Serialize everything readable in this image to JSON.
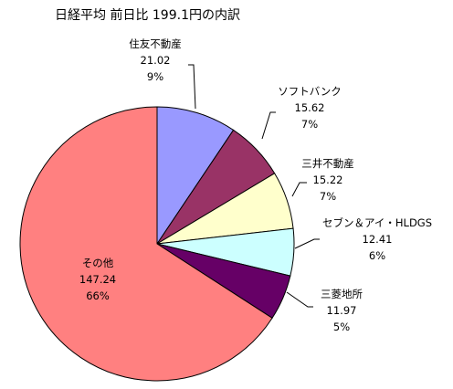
{
  "chart_data": {
    "type": "pie",
    "title": "日経平均 前日比 199.1円の内訳",
    "slices": [
      {
        "name": "住友不動産",
        "value": "21.02",
        "percent": "9%",
        "color": "#9999ff"
      },
      {
        "name": "ソフトバンク",
        "value": "15.62",
        "percent": "7%",
        "color": "#993366"
      },
      {
        "name": "三井不動産",
        "value": "15.22",
        "percent": "7%",
        "color": "#ffffcc"
      },
      {
        "name": "セブン＆アイ・HLDGS",
        "value": "12.41",
        "percent": "6%",
        "color": "#ccffff"
      },
      {
        "name": "三菱地所",
        "value": "11.97",
        "percent": "5%",
        "color": "#660066"
      },
      {
        "name": "その他",
        "value": "147.24",
        "percent": "66%",
        "color": "#ff8080"
      }
    ]
  }
}
